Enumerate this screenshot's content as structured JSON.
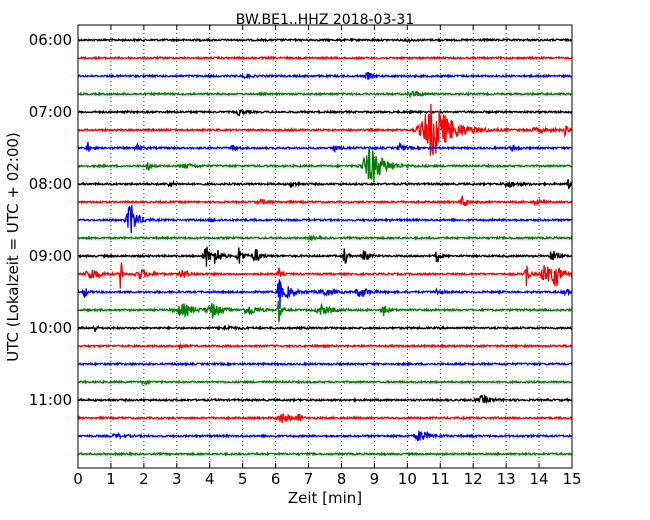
{
  "chart_data": {
    "type": "line",
    "title": "BW.BE1..HHZ 2018-03-31",
    "xlabel": "Zeit  [min]",
    "ylabel": "UTC (Lokalzeit = UTC + 02:00)",
    "xlim": [
      0,
      15
    ],
    "x_ticks": [
      "0",
      "1",
      "2",
      "3",
      "4",
      "5",
      "6",
      "7",
      "8",
      "9",
      "10",
      "11",
      "12",
      "13",
      "14",
      "15"
    ],
    "y_ticks": [
      {
        "label": "06:00",
        "trace": 0
      },
      {
        "label": "07:00",
        "trace": 4
      },
      {
        "label": "08:00",
        "trace": 8
      },
      {
        "label": "09:00",
        "trace": 12
      },
      {
        "label": "10:00",
        "trace": 16
      },
      {
        "label": "11:00",
        "trace": 20
      }
    ],
    "trace_interval_min": 15,
    "colors": [
      "#000000",
      "#ff0000",
      "#0000ff",
      "#008000"
    ],
    "grid": "vertical-dotted",
    "series": [
      {
        "start": "06:00",
        "events": [
          {
            "t": 10.0,
            "amp": 1.5,
            "w": 0.1
          }
        ]
      },
      {
        "start": "06:15",
        "events": []
      },
      {
        "start": "06:30",
        "events": [
          {
            "t": 5.1,
            "amp": 2,
            "w": 0.1
          },
          {
            "t": 8.8,
            "amp": 4,
            "w": 0.1
          }
        ]
      },
      {
        "start": "06:45",
        "events": [
          {
            "t": 10.1,
            "amp": 4,
            "w": 0.1
          },
          {
            "t": 10.3,
            "amp": 2,
            "w": 0.1
          }
        ]
      },
      {
        "start": "07:00",
        "events": [
          {
            "t": 4.9,
            "amp": 3,
            "w": 0.1
          }
        ]
      },
      {
        "start": "07:15",
        "events": [
          {
            "t": 10.8,
            "amp": 28,
            "w": 0.45
          },
          {
            "t": 14.8,
            "amp": 6,
            "w": 0.05
          },
          {
            "t": 14.0,
            "amp": 2,
            "w": 0.3
          }
        ]
      },
      {
        "start": "07:30",
        "events": [
          {
            "t": 0.3,
            "amp": 6,
            "w": 0.05
          },
          {
            "t": 1.8,
            "amp": 3,
            "w": 0.1
          },
          {
            "t": 4.7,
            "amp": 3,
            "w": 0.1
          },
          {
            "t": 7.8,
            "amp": 3,
            "w": 0.1
          },
          {
            "t": 9.8,
            "amp": 4,
            "w": 0.1
          },
          {
            "t": 13.2,
            "amp": 3,
            "w": 0.1
          }
        ]
      },
      {
        "start": "07:45",
        "events": [
          {
            "t": 2.1,
            "amp": 8,
            "w": 0.05
          },
          {
            "t": 8.9,
            "amp": 20,
            "w": 0.3
          },
          {
            "t": 3.3,
            "amp": 2,
            "w": 0.2
          }
        ]
      },
      {
        "start": "08:00",
        "events": [
          {
            "t": 2.8,
            "amp": 3,
            "w": 0.1
          },
          {
            "t": 6.5,
            "amp": 3,
            "w": 0.1
          },
          {
            "t": 13.1,
            "amp": 3,
            "w": 0.2
          },
          {
            "t": 14.9,
            "amp": 5,
            "w": 0.05
          }
        ]
      },
      {
        "start": "08:15",
        "events": [
          {
            "t": 11.7,
            "amp": 6,
            "w": 0.1
          },
          {
            "t": 13.9,
            "amp": 3,
            "w": 0.1
          },
          {
            "t": 5.6,
            "amp": 2,
            "w": 0.2
          }
        ]
      },
      {
        "start": "08:30",
        "events": [
          {
            "t": 1.6,
            "amp": 18,
            "w": 0.15
          },
          {
            "t": 4.1,
            "amp": 2,
            "w": 0.1
          }
        ]
      },
      {
        "start": "08:45",
        "events": [
          {
            "t": 7.1,
            "amp": 2,
            "w": 0.1
          }
        ]
      },
      {
        "start": "09:00",
        "events": [
          {
            "t": 3.9,
            "amp": 12,
            "w": 0.1
          },
          {
            "t": 4.2,
            "amp": 10,
            "w": 0.1
          },
          {
            "t": 4.9,
            "amp": 9,
            "w": 0.1
          },
          {
            "t": 5.4,
            "amp": 8,
            "w": 0.1
          },
          {
            "t": 8.1,
            "amp": 14,
            "w": 0.05
          },
          {
            "t": 8.7,
            "amp": 8,
            "w": 0.1
          },
          {
            "t": 10.9,
            "amp": 10,
            "w": 0.05
          },
          {
            "t": 14.4,
            "amp": 7,
            "w": 0.1
          }
        ]
      },
      {
        "start": "09:15",
        "events": [
          {
            "t": 1.3,
            "amp": 28,
            "w": 0.03
          },
          {
            "t": 0.4,
            "amp": 6,
            "w": 0.2
          },
          {
            "t": 1.9,
            "amp": 5,
            "w": 0.2
          },
          {
            "t": 3.2,
            "amp": 4,
            "w": 0.15
          },
          {
            "t": 6.1,
            "amp": 6,
            "w": 0.05
          },
          {
            "t": 13.6,
            "amp": 20,
            "w": 0.05
          },
          {
            "t": 14.2,
            "amp": 10,
            "w": 0.2
          },
          {
            "t": 14.5,
            "amp": 14,
            "w": 0.1
          }
        ]
      },
      {
        "start": "09:30",
        "events": [
          {
            "t": 0.2,
            "amp": 8,
            "w": 0.05
          },
          {
            "t": 6.1,
            "amp": 40,
            "w": 0.04
          },
          {
            "t": 6.4,
            "amp": 5,
            "w": 0.2
          },
          {
            "t": 7.5,
            "amp": 4,
            "w": 0.2
          },
          {
            "t": 8.6,
            "amp": 5,
            "w": 0.2
          },
          {
            "t": 10.9,
            "amp": 3,
            "w": 0.1
          },
          {
            "t": 14.8,
            "amp": 4,
            "w": 0.1
          }
        ]
      },
      {
        "start": "09:45",
        "events": [
          {
            "t": 3.2,
            "amp": 6,
            "w": 0.3
          },
          {
            "t": 4.1,
            "amp": 7,
            "w": 0.2
          },
          {
            "t": 5.2,
            "amp": 5,
            "w": 0.2
          },
          {
            "t": 6.1,
            "amp": 14,
            "w": 0.05
          },
          {
            "t": 7.4,
            "amp": 5,
            "w": 0.2
          },
          {
            "t": 9.3,
            "amp": 6,
            "w": 0.1
          }
        ]
      },
      {
        "start": "10:00",
        "events": [
          {
            "t": 0.5,
            "amp": 5,
            "w": 0.05
          },
          {
            "t": 4.5,
            "amp": 2,
            "w": 0.2
          }
        ]
      },
      {
        "start": "10:15",
        "events": [
          {
            "t": 3.1,
            "amp": 3,
            "w": 0.05
          }
        ]
      },
      {
        "start": "10:30",
        "events": []
      },
      {
        "start": "10:45",
        "events": [
          {
            "t": 2.0,
            "amp": 2,
            "w": 0.1
          }
        ]
      },
      {
        "start": "11:00",
        "events": [
          {
            "t": 12.3,
            "amp": 4,
            "w": 0.2
          }
        ]
      },
      {
        "start": "11:15",
        "events": [
          {
            "t": 6.2,
            "amp": 5,
            "w": 0.2
          },
          {
            "t": 6.7,
            "amp": 5,
            "w": 0.05
          }
        ]
      },
      {
        "start": "11:30",
        "events": [
          {
            "t": 10.4,
            "amp": 6,
            "w": 0.2
          },
          {
            "t": 1.2,
            "amp": 2,
            "w": 0.2
          }
        ]
      },
      {
        "start": "11:45",
        "events": []
      }
    ]
  }
}
